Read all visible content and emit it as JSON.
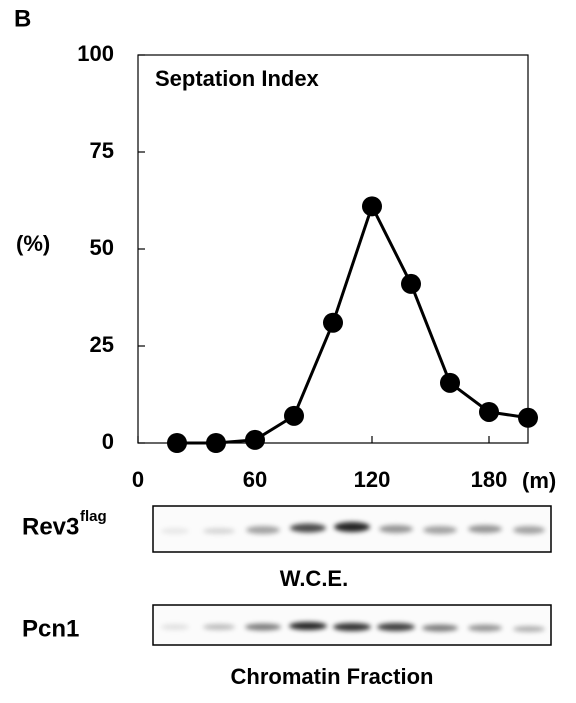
{
  "panel_label": "B",
  "chart_data": {
    "type": "line",
    "title": "Septation Index",
    "y_label": "(%)",
    "x_unit_label": "(m)",
    "x": [
      20,
      40,
      60,
      80,
      100,
      120,
      140,
      160,
      180,
      200
    ],
    "values": [
      0,
      0,
      0.8,
      7,
      31,
      61,
      41,
      15.5,
      8,
      6.5
    ],
    "color": "#000000",
    "xlim": [
      0,
      200
    ],
    "xticks": [
      0,
      60,
      120,
      180
    ],
    "ylim": [
      0,
      100
    ],
    "yticks": [
      0,
      25,
      50,
      75,
      100
    ]
  },
  "blots": [
    {
      "label": "Rev3",
      "superscript": "flag",
      "caption": "W.C.E."
    },
    {
      "label": "Pcn1",
      "caption": "Chromatin Fraction"
    }
  ]
}
